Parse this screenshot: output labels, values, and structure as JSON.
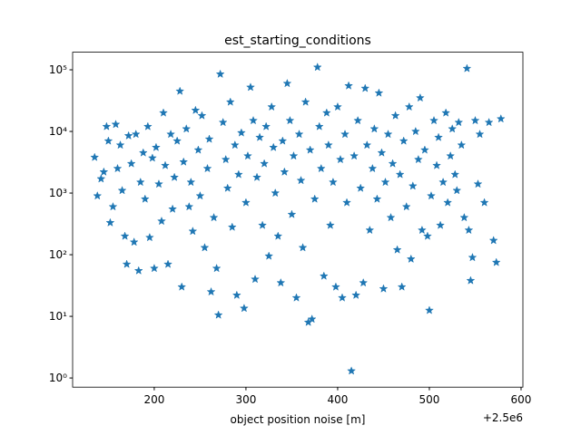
{
  "chart_data": {
    "type": "scatter",
    "title": "est_starting_conditions",
    "xlabel": "object position noise [m]",
    "x_offset_label": "+2.5e6",
    "color": "#1f77b4",
    "marker": "star",
    "yscale": "log",
    "xlim": [
      2500111,
      2500602
    ],
    "ylim": [
      0.71,
      193000
    ],
    "xticks": [
      {
        "value": 2500200,
        "label": "200"
      },
      {
        "value": 2500300,
        "label": "300"
      },
      {
        "value": 2500400,
        "label": "400"
      },
      {
        "value": 2500500,
        "label": "500"
      },
      {
        "value": 2500600,
        "label": "600"
      }
    ],
    "yticks": [
      {
        "value": 1,
        "label": "10⁰"
      },
      {
        "value": 10,
        "label": "10¹"
      },
      {
        "value": 100,
        "label": "10²"
      },
      {
        "value": 1000,
        "label": "10³"
      },
      {
        "value": 10000,
        "label": "10⁴"
      },
      {
        "value": 100000,
        "label": "10⁵"
      }
    ],
    "x": [
      2500135,
      2500138,
      2500142,
      2500145,
      2500148,
      2500150,
      2500152,
      2500155,
      2500158,
      2500160,
      2500163,
      2500165,
      2500168,
      2500170,
      2500172,
      2500175,
      2500178,
      2500180,
      2500183,
      2500185,
      2500188,
      2500190,
      2500193,
      2500195,
      2500198,
      2500200,
      2500202,
      2500205,
      2500208,
      2500210,
      2500212,
      2500215,
      2500218,
      2500220,
      2500222,
      2500225,
      2500228,
      2500230,
      2500232,
      2500235,
      2500238,
      2500240,
      2500242,
      2500245,
      2500248,
      2500250,
      2500252,
      2500255,
      2500258,
      2500260,
      2500262,
      2500265,
      2500268,
      2500270,
      2500272,
      2500275,
      2500278,
      2500280,
      2500283,
      2500285,
      2500288,
      2500290,
      2500292,
      2500295,
      2500298,
      2500300,
      2500302,
      2500305,
      2500308,
      2500310,
      2500312,
      2500315,
      2500318,
      2500320,
      2500322,
      2500325,
      2500328,
      2500330,
      2500332,
      2500335,
      2500338,
      2500340,
      2500342,
      2500345,
      2500348,
      2500350,
      2500352,
      2500355,
      2500358,
      2500360,
      2500362,
      2500365,
      2500368,
      2500370,
      2500372,
      2500375,
      2500378,
      2500380,
      2500382,
      2500385,
      2500388,
      2500390,
      2500392,
      2500395,
      2500398,
      2500400,
      2500403,
      2500405,
      2500408,
      2500410,
      2500412,
      2500415,
      2500418,
      2500420,
      2500422,
      2500425,
      2500428,
      2500430,
      2500432,
      2500435,
      2500438,
      2500440,
      2500443,
      2500445,
      2500448,
      2500450,
      2500452,
      2500455,
      2500458,
      2500460,
      2500463,
      2500465,
      2500468,
      2500470,
      2500472,
      2500475,
      2500478,
      2500480,
      2500482,
      2500485,
      2500488,
      2500490,
      2500492,
      2500495,
      2500498,
      2500500,
      2500502,
      2500505,
      2500508,
      2500510,
      2500512,
      2500515,
      2500518,
      2500520,
      2500523,
      2500525,
      2500528,
      2500530,
      2500532,
      2500535,
      2500538,
      2500541,
      2500543,
      2500545,
      2500547,
      2500550,
      2500553,
      2500555,
      2500560,
      2500565,
      2500570,
      2500573,
      2500578
    ],
    "values": [
      3800,
      900,
      1700,
      2200,
      12000,
      7000,
      330,
      600,
      13000,
      2500,
      6000,
      1100,
      200,
      70,
      8500,
      3000,
      160,
      9000,
      55,
      1500,
      4500,
      800,
      12000,
      190,
      3700,
      60,
      5500,
      1400,
      350,
      20000,
      2800,
      70,
      9000,
      550,
      1800,
      7000,
      45000,
      30,
      3200,
      11000,
      600,
      1500,
      240,
      22000,
      5000,
      900,
      18000,
      130,
      2500,
      7500,
      25,
      400,
      60,
      10.5,
      85000,
      14000,
      3500,
      1200,
      30000,
      280,
      6000,
      22,
      2000,
      9500,
      13.5,
      700,
      4000,
      52000,
      15000,
      40,
      1800,
      8000,
      300,
      3000,
      12000,
      95,
      25000,
      5500,
      1000,
      200,
      35,
      7000,
      2200,
      60000,
      15000,
      450,
      4000,
      20,
      9000,
      1600,
      130,
      30000,
      8,
      5000,
      9,
      800,
      110000,
      12000,
      2500,
      45,
      20000,
      6000,
      300,
      1500,
      30,
      25000,
      3500,
      20,
      9000,
      700,
      55000,
      1.3,
      4000,
      22,
      15000,
      1200,
      35,
      50000,
      6000,
      250,
      2500,
      11000,
      800,
      42000,
      4500,
      28,
      1500,
      9000,
      400,
      3000,
      18000,
      120,
      2000,
      30,
      7000,
      600,
      25000,
      85,
      1300,
      10000,
      3500,
      35000,
      250,
      5000,
      200,
      12.5,
      900,
      15000,
      2800,
      8000,
      300,
      1500,
      20000,
      700,
      4000,
      11000,
      2000,
      1100,
      14000,
      6000,
      400,
      105000,
      250,
      38,
      90,
      15000,
      1400,
      9000,
      700,
      14000,
      170,
      75,
      16000
    ]
  }
}
